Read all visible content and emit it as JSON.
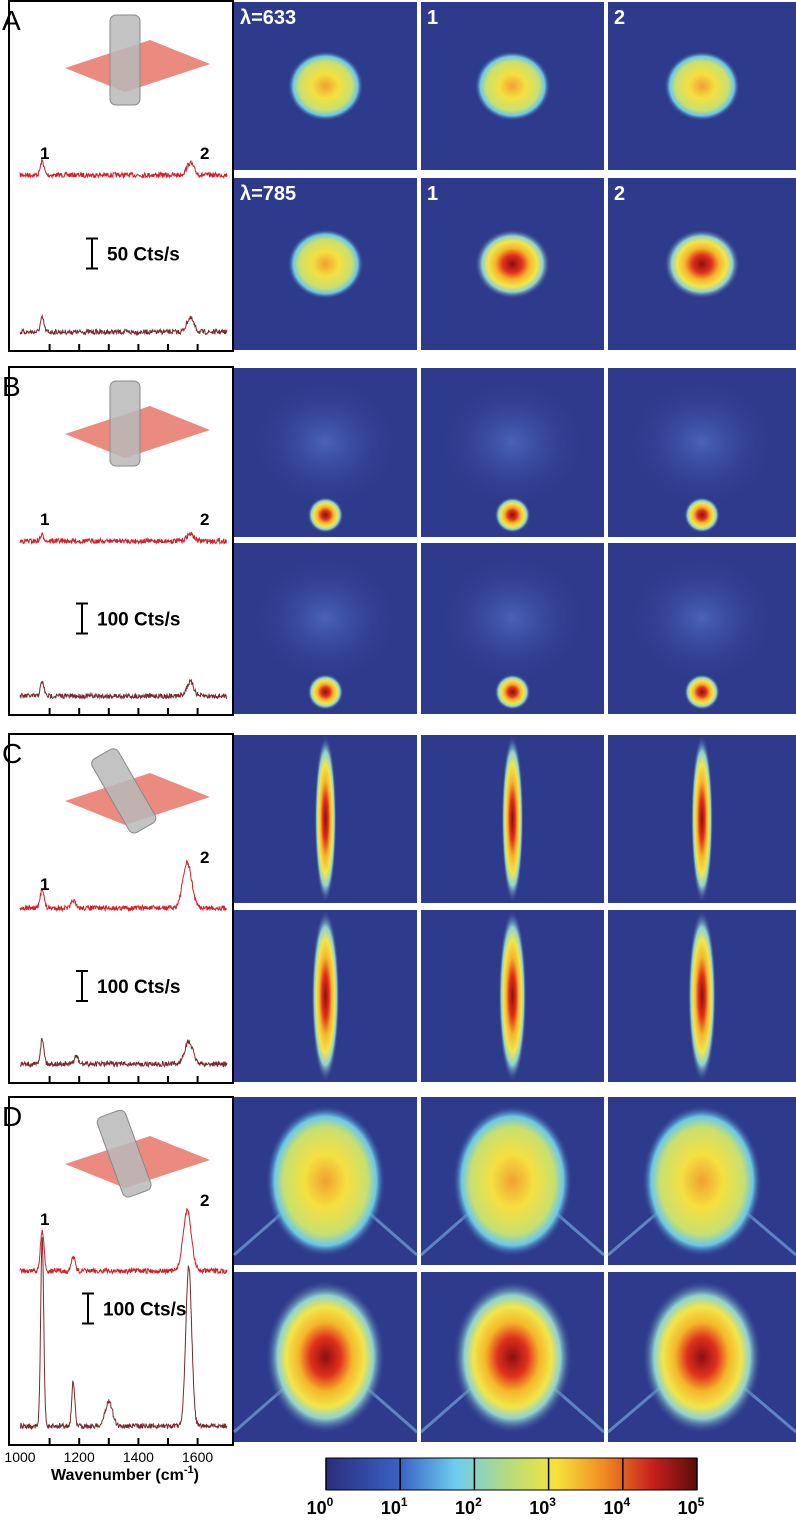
{
  "panels": [
    {
      "letter": "A",
      "peak_labels": [
        "1",
        "2"
      ],
      "scale_label": "50 Cts/s",
      "map_labels": [
        "λ=633",
        "1",
        "2",
        "λ=785",
        "1",
        "2"
      ]
    },
    {
      "letter": "B",
      "peak_labels": [
        "1",
        "2"
      ],
      "scale_label": "100 Cts/s"
    },
    {
      "letter": "C",
      "peak_labels": [
        "1",
        "2"
      ],
      "scale_label": "100 Cts/s"
    },
    {
      "letter": "D",
      "peak_labels": [
        "1",
        "2"
      ],
      "scale_label": "100 Cts/s"
    }
  ],
  "x_axis": {
    "ticks": [
      "1000",
      "1200",
      "1400",
      "1600"
    ],
    "label": {
      "text": "Wavenumber (cm",
      "sup": "-1",
      "close": ")"
    }
  },
  "colorbar": {
    "ticks": [
      {
        "base": "10",
        "exp": "0"
      },
      {
        "base": "10",
        "exp": "1"
      },
      {
        "base": "10",
        "exp": "2"
      },
      {
        "base": "10",
        "exp": "3"
      },
      {
        "base": "10",
        "exp": "4"
      },
      {
        "base": "10",
        "exp": "5"
      }
    ]
  }
}
